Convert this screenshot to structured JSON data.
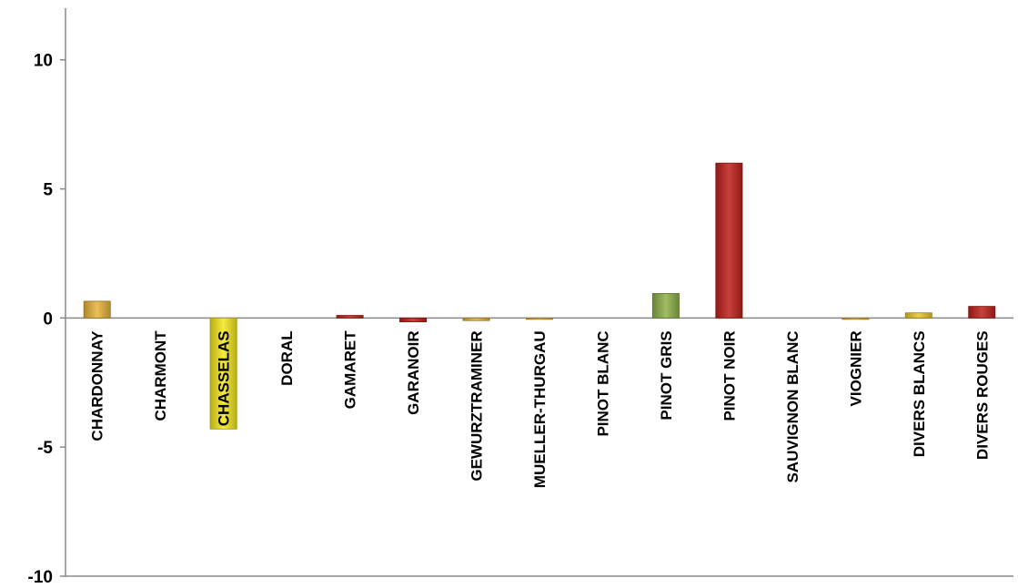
{
  "chart_data": {
    "type": "bar",
    "title": "",
    "xlabel": "",
    "ylabel": "",
    "ylim": [
      -10,
      12
    ],
    "yticks": [
      -10,
      -5,
      0,
      5,
      10
    ],
    "grid": false,
    "legend": "none",
    "categories": [
      "CHARDONNAY",
      "CHARMONT",
      "CHASSELAS",
      "DORAL",
      "GAMARET",
      "GARANOIR",
      "GEWURZTRAMINER",
      "MUELLER-THURGAU",
      "PINOT BLANC",
      "PINOT GRIS",
      "PINOT NOIR",
      "SAUVIGNON BLANC",
      "VIOGNIER",
      "DIVERS BLANCS",
      "DIVERS ROUGES"
    ],
    "values": [
      0.65,
      0,
      -4.3,
      0,
      0.1,
      -0.15,
      -0.1,
      -0.05,
      0,
      0.95,
      6.0,
      0,
      -0.05,
      0.2,
      0.45
    ],
    "bar_colors": [
      "#e8b43a",
      "#e8b43a",
      "#f4e81c",
      "#e8b43a",
      "#c0201a",
      "#c0201a",
      "#e8b43a",
      "#e8b43a",
      "#e8b43a",
      "#8fb04a",
      "#c0201a",
      "#e8b43a",
      "#e8b43a",
      "#e8c82a",
      "#c0201a"
    ]
  }
}
